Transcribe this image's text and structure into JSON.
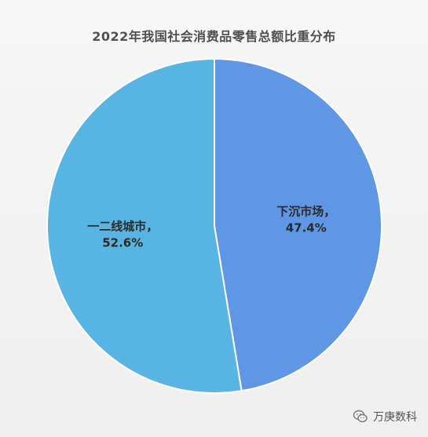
{
  "chart_data": {
    "type": "pie",
    "title": "2022年我国社会消费品零售总额比重分布",
    "slices": [
      {
        "name": "下沉市场",
        "value": 47.4,
        "value_label": "47.4%",
        "label_sep": "，",
        "color": "#6097e4"
      },
      {
        "name": "一二线城市",
        "value": 52.6,
        "value_label": "52.6%",
        "label_sep": "，",
        "color": "#58b4e2"
      }
    ],
    "start_angle_deg": 0,
    "direction": "clockwise",
    "slice_border_color": "#ffffff"
  },
  "watermark": {
    "text": "万庚数科",
    "icon": "wechat-icon"
  }
}
